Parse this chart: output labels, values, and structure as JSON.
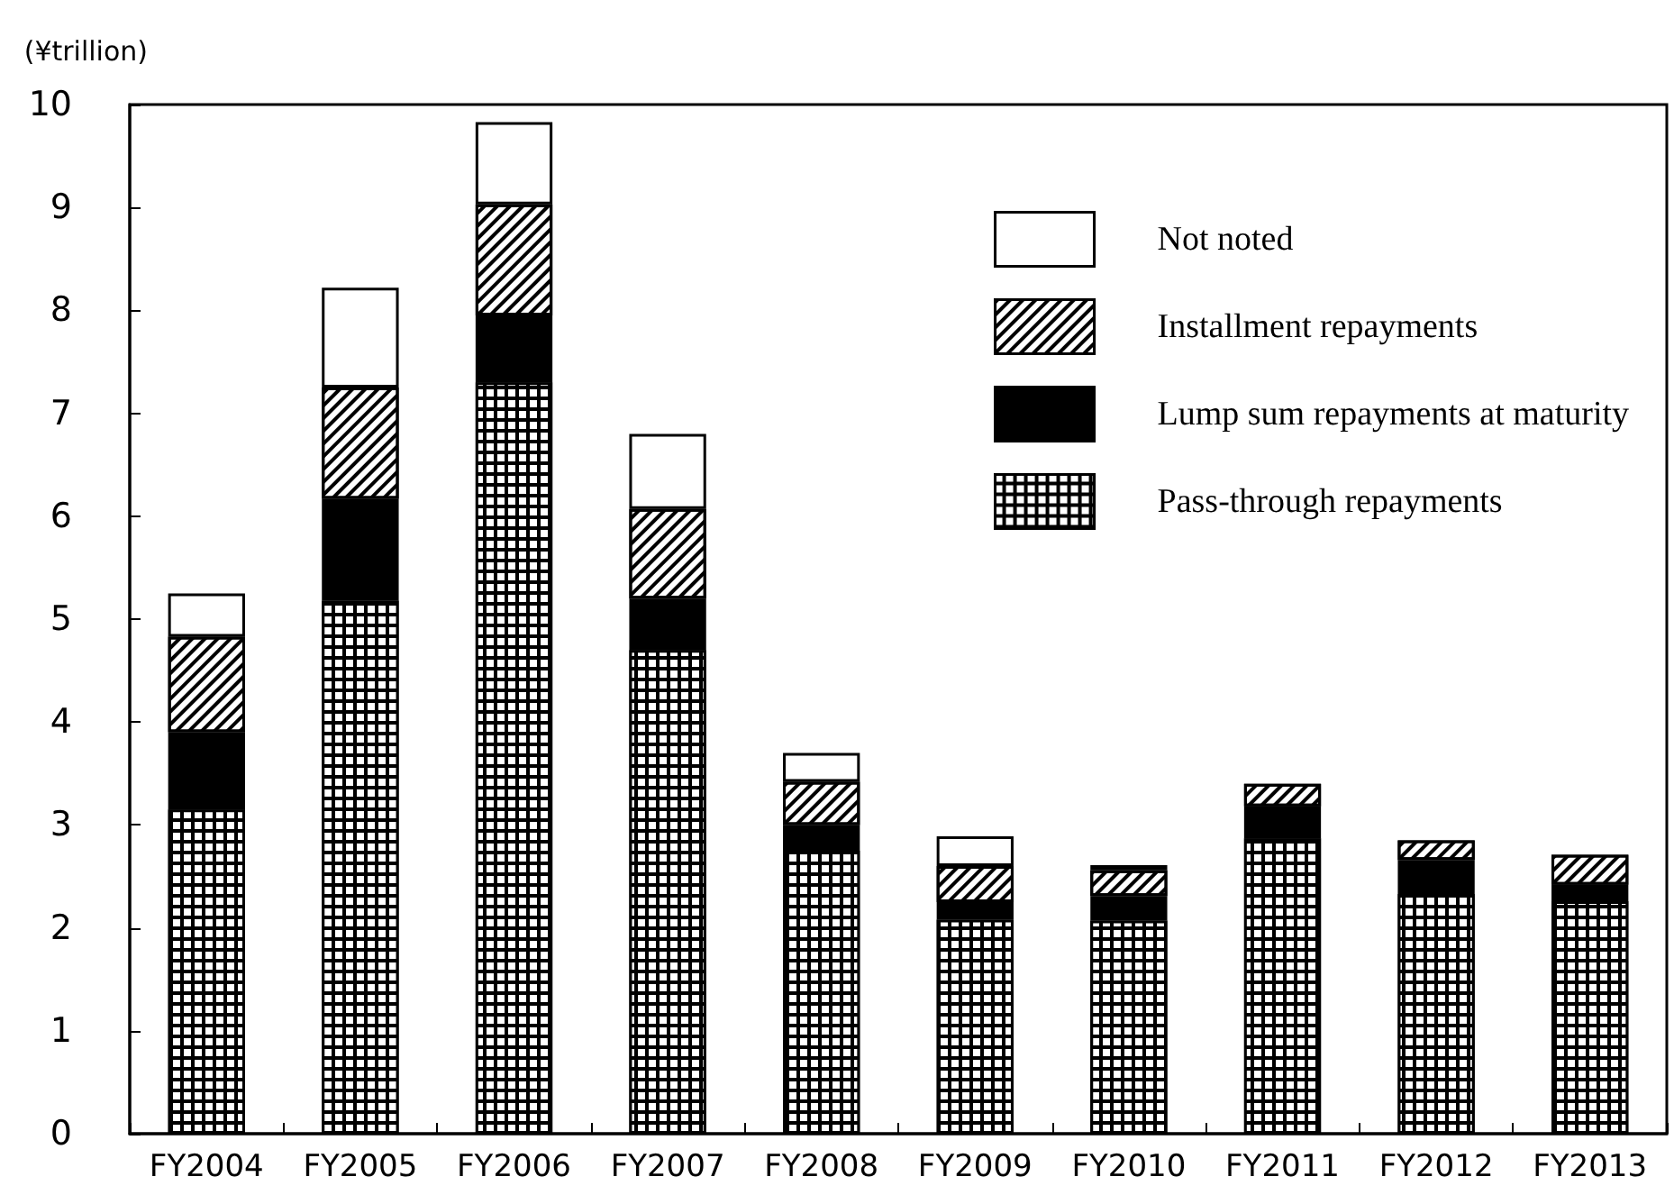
{
  "chart_data": {
    "type": "bar",
    "stacked": true,
    "ylabel": "(¥trillion)",
    "categories": [
      "FY2004",
      "FY2005",
      "FY2006",
      "FY2007",
      "FY2008",
      "FY2009",
      "FY2010",
      "FY2011",
      "FY2012",
      "FY2013"
    ],
    "series": [
      {
        "name": "Pass-through repayments",
        "color": "#000000",
        "values": [
          3.15,
          5.18,
          7.3,
          4.7,
          2.75,
          2.08,
          2.07,
          2.87,
          2.33,
          2.26
        ]
      },
      {
        "name": "Lump sum repayments at maturity",
        "color": "#000000",
        "values": [
          0.75,
          0.99,
          0.65,
          0.5,
          0.25,
          0.17,
          0.24,
          0.31,
          0.33,
          0.16
        ]
      },
      {
        "name": "Installment repayments",
        "color": "#ffffff",
        "values": [
          0.93,
          1.08,
          1.08,
          0.87,
          0.42,
          0.35,
          0.25,
          0.22,
          0.19,
          0.29
        ]
      },
      {
        "name": "Not noted",
        "color": "#ffffff",
        "values": [
          0.42,
          0.97,
          0.8,
          0.73,
          0.28,
          0.29,
          0.05,
          null,
          null,
          null
        ]
      }
    ],
    "ylim": [
      0,
      10
    ],
    "yticks": [
      0,
      1,
      2,
      3,
      4,
      5,
      6,
      7,
      8,
      9,
      10
    ],
    "grid": false,
    "legend": "top right"
  }
}
